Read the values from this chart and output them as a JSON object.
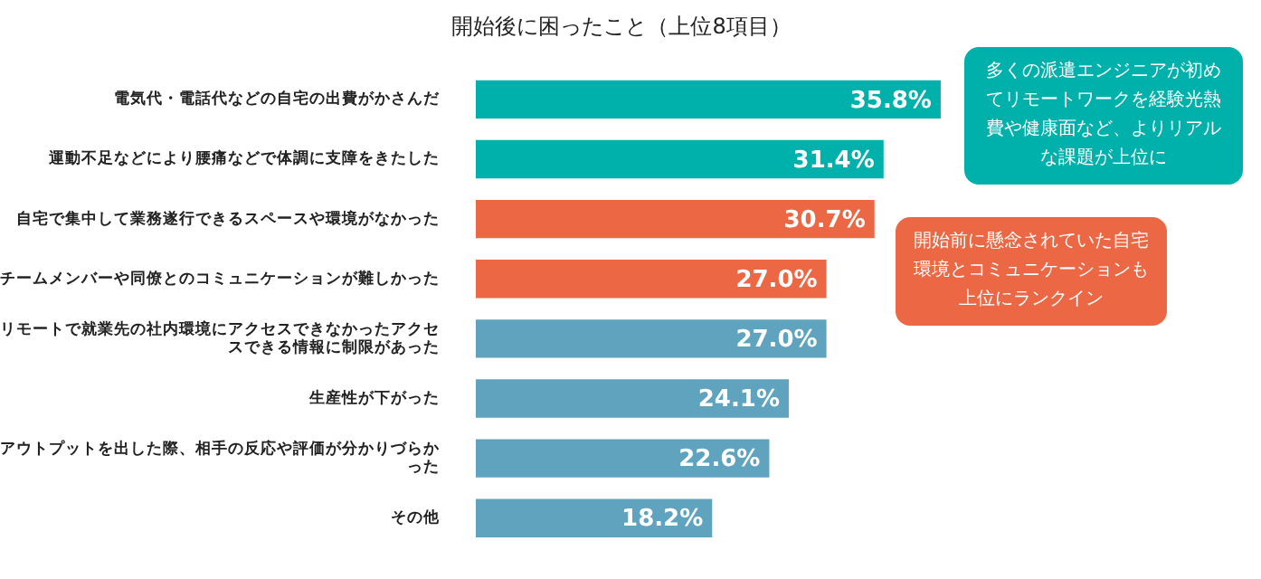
{
  "chart_data": {
    "type": "bar",
    "orientation": "horizontal",
    "title": "開始後に困ったこと（上位8項目）",
    "categories": [
      "電気代・電話代などの自宅の出費がかさんだ",
      "運動不足などにより腰痛などで体調に支障をきたした",
      "自宅で集中して業務遂行できるスペースや環境がなかった",
      "チームメンバーや同僚とのコミュニケーションが難しかった",
      "リモートで就業先の社内環境にアクセスできなかったアクセスできる情報に制限があった",
      "生産性が下がった",
      "アウトプットを出した際、相手の反応や評価が分かりづらかった",
      "その他"
    ],
    "values": [
      35.8,
      31.4,
      30.7,
      27.0,
      27.0,
      24.1,
      22.6,
      18.2
    ],
    "colors": [
      "#00b0aa",
      "#00b0aa",
      "#ec6845",
      "#ec6845",
      "#5fa3bf",
      "#5fa3bf",
      "#5fa3bf",
      "#5fa3bf"
    ],
    "value_labels": [
      "35.8%",
      "31.4%",
      "30.7%",
      "27.0%",
      "27.0%",
      "24.1%",
      "22.6%",
      "18.2%"
    ],
    "annotations": [
      "多くの派遣エンジニアが初めてリモートワークを経験光熱費や健康面など、よりリアルな課題が上位に",
      "開始前に懸念されていた自宅環境とコミュニケーションも上位にランクイン"
    ]
  }
}
